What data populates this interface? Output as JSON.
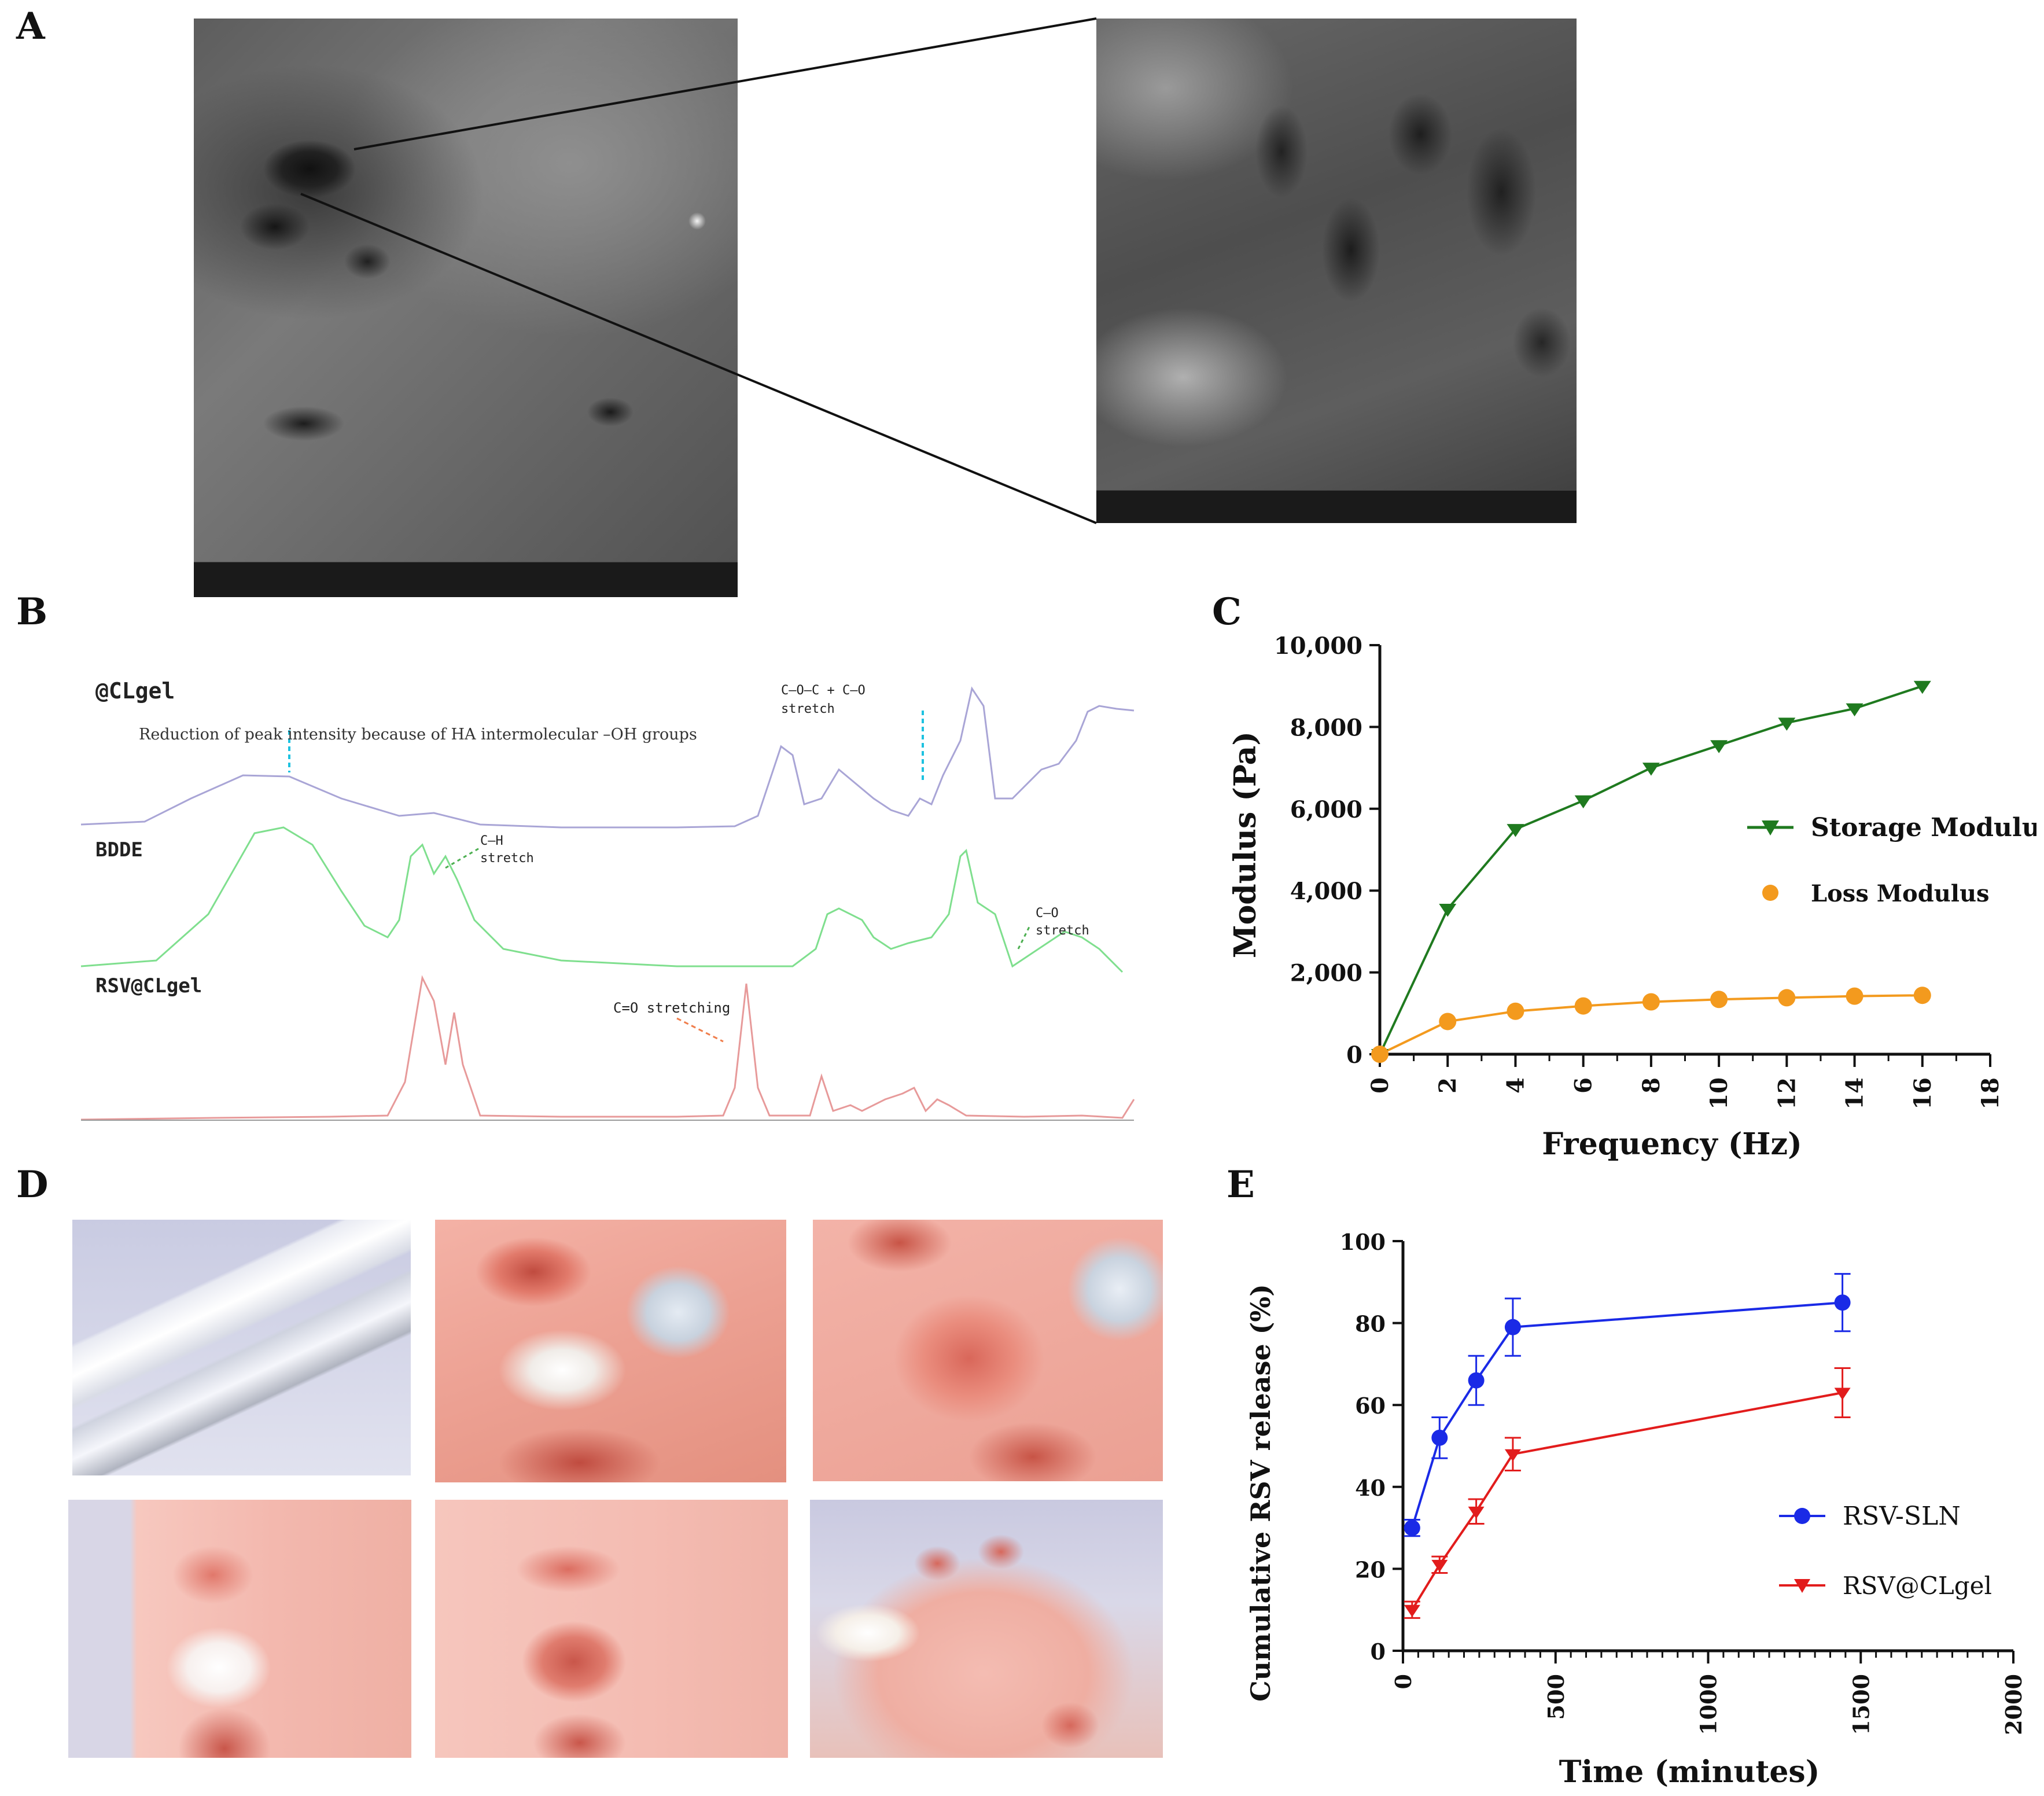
{
  "panels": {
    "A": {
      "label": "A"
    },
    "B": {
      "label": "B"
    },
    "C": {
      "label": "C"
    },
    "D": {
      "label": "D"
    },
    "E": {
      "label": "E"
    }
  },
  "panel_b": {
    "traces": [
      {
        "name": "@CLgel",
        "color": "#a9a5d6"
      },
      {
        "name": "BDDE",
        "color": "#7fdf8e"
      },
      {
        "name": "RSV@CLgel",
        "color": "#e79a9a"
      }
    ],
    "annotations": {
      "oh": "Reduction of peak intensity because of HA intermolecular –OH groups",
      "coc_1": "C–O–C + C–O",
      "coc_2": "stretch",
      "ch_1": "C–H",
      "ch_2": "stretch",
      "co_1": "C–O",
      "co_2": "stretch",
      "c_o_stretching": "C=O stretching"
    }
  },
  "chart_data": [
    {
      "type": "line",
      "panel": "C",
      "xlabel": "Frequency (Hz)",
      "ylabel": "Modulus (Pa)",
      "xlim": [
        0,
        18
      ],
      "ylim": [
        0,
        10000
      ],
      "x_ticks": [
        "0",
        "2",
        "4",
        "6",
        "8",
        "10",
        "12",
        "14",
        "16",
        "18"
      ],
      "y_ticks": [
        "0",
        "2,000",
        "4,000",
        "6,000",
        "8,000",
        "10,000"
      ],
      "legend_position": "right",
      "series": [
        {
          "name": "Storage Modulus",
          "color": "#1f7a1f",
          "marker": "triangle-down",
          "x": [
            0,
            2,
            4,
            6,
            8,
            10,
            12,
            14,
            16
          ],
          "y": [
            0,
            3550,
            5500,
            6200,
            7000,
            7550,
            8100,
            8450,
            9000
          ]
        },
        {
          "name": "Loss Modulus",
          "color": "#f39a1e",
          "marker": "circle",
          "x": [
            0,
            2,
            4,
            6,
            8,
            10,
            12,
            14,
            16
          ],
          "y": [
            0,
            800,
            1050,
            1180,
            1280,
            1340,
            1380,
            1420,
            1440
          ]
        }
      ]
    },
    {
      "type": "line",
      "panel": "E",
      "xlabel": "Time (minutes)",
      "ylabel": "Cumulative RSV release (%)",
      "xlim": [
        0,
        2000
      ],
      "ylim": [
        0,
        100
      ],
      "x_ticks": [
        "0",
        "500",
        "1000",
        "1500",
        "2000"
      ],
      "y_ticks": [
        "0",
        "20",
        "40",
        "60",
        "80",
        "100"
      ],
      "legend_position": "bottom-right",
      "series": [
        {
          "name": "RSV-SLN",
          "color": "#1a2ae6",
          "marker": "circle",
          "x": [
            30,
            120,
            240,
            360,
            1440
          ],
          "y": [
            30,
            52,
            66,
            79,
            85
          ],
          "err": [
            2,
            5,
            6,
            7,
            7
          ]
        },
        {
          "name": "RSV@CLgel",
          "color": "#e21c1c",
          "marker": "triangle-down",
          "x": [
            30,
            120,
            240,
            360,
            1440
          ],
          "y": [
            10,
            21,
            34,
            48,
            63
          ],
          "err": [
            2,
            2,
            3,
            4,
            6
          ]
        }
      ]
    }
  ]
}
